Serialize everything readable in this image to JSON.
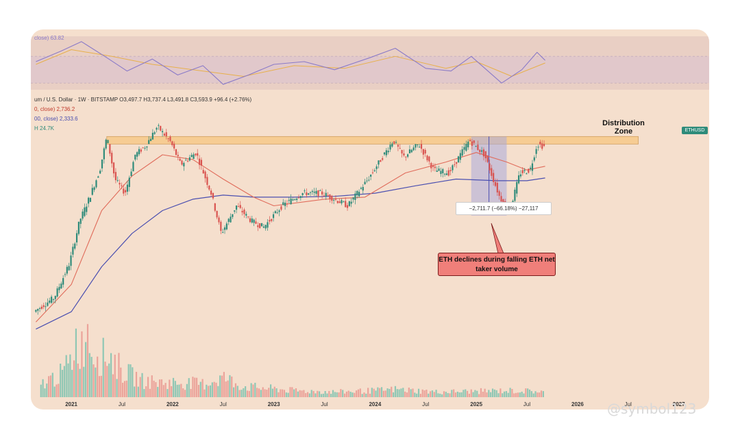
{
  "header": {
    "main": "um / U.S. Dollar · 1W · BITSTAMP  O3,497.7 H3,737.4 L3,491.8 C3,593.9 +96.4 (+2.76%)",
    "ma1": "0, close)  2,736.2",
    "ma2": "00, close)  2,333.6",
    "vol": "H  24.7K",
    "rsi": "close)  63.82"
  },
  "annotations": {
    "zone_label": "Distribution Zone",
    "price_tag": "ETHUSD",
    "measure": "−2,711.7 (−66.18%) −27,117",
    "callout": "ETH declines during falling ETH net taker volume"
  },
  "watermark": "@symbol123",
  "colors": {
    "up": "#2e8b7a",
    "down": "#d9534f",
    "ma_short": "#e06b5a",
    "ma_long": "#4a4fb0",
    "zone": "#f7c98a",
    "measure_box": "#a9a9dc",
    "rsi_line": "#8a7ac8",
    "rsi_signal": "#e8b04a",
    "callout": "#f07f7a"
  },
  "chart_data": {
    "type": "line",
    "x_tick_labels": [
      "2021",
      "Jul",
      "2022",
      "Jul",
      "2023",
      "Jul",
      "2024",
      "Jul",
      "2025",
      "Jul",
      "2026",
      "Jul",
      "2027"
    ],
    "price_points": [
      {
        "x": 2020.65,
        "y": 380
      },
      {
        "x": 2020.85,
        "y": 460
      },
      {
        "x": 2021.0,
        "y": 730
      },
      {
        "x": 2021.1,
        "y": 1300
      },
      {
        "x": 2021.2,
        "y": 1800
      },
      {
        "x": 2021.3,
        "y": 2600
      },
      {
        "x": 2021.37,
        "y": 4100
      },
      {
        "x": 2021.45,
        "y": 2300
      },
      {
        "x": 2021.55,
        "y": 1900
      },
      {
        "x": 2021.65,
        "y": 3200
      },
      {
        "x": 2021.75,
        "y": 3600
      },
      {
        "x": 2021.87,
        "y": 4700
      },
      {
        "x": 2022.0,
        "y": 3800
      },
      {
        "x": 2022.1,
        "y": 2800
      },
      {
        "x": 2022.25,
        "y": 3300
      },
      {
        "x": 2022.4,
        "y": 1900
      },
      {
        "x": 2022.5,
        "y": 1100
      },
      {
        "x": 2022.65,
        "y": 1600
      },
      {
        "x": 2022.8,
        "y": 1300
      },
      {
        "x": 2022.92,
        "y": 1200
      },
      {
        "x": 2023.1,
        "y": 1600
      },
      {
        "x": 2023.3,
        "y": 1900
      },
      {
        "x": 2023.5,
        "y": 1900
      },
      {
        "x": 2023.75,
        "y": 1600
      },
      {
        "x": 2023.95,
        "y": 2300
      },
      {
        "x": 2024.2,
        "y": 3900
      },
      {
        "x": 2024.3,
        "y": 3100
      },
      {
        "x": 2024.45,
        "y": 3700
      },
      {
        "x": 2024.6,
        "y": 2600
      },
      {
        "x": 2024.75,
        "y": 2500
      },
      {
        "x": 2024.95,
        "y": 3900
      },
      {
        "x": 2025.1,
        "y": 3200
      },
      {
        "x": 2025.25,
        "y": 1800
      },
      {
        "x": 2025.35,
        "y": 1500
      },
      {
        "x": 2025.45,
        "y": 2500
      },
      {
        "x": 2025.55,
        "y": 2600
      },
      {
        "x": 2025.62,
        "y": 3700
      },
      {
        "x": 2025.68,
        "y": 3594
      }
    ],
    "ma_short": [
      {
        "x": 2020.65,
        "y": 330
      },
      {
        "x": 2021.0,
        "y": 550
      },
      {
        "x": 2021.3,
        "y": 1500
      },
      {
        "x": 2021.6,
        "y": 2400
      },
      {
        "x": 2021.9,
        "y": 3200
      },
      {
        "x": 2022.2,
        "y": 3000
      },
      {
        "x": 2022.5,
        "y": 2300
      },
      {
        "x": 2022.8,
        "y": 1800
      },
      {
        "x": 2023.0,
        "y": 1600
      },
      {
        "x": 2023.5,
        "y": 1750
      },
      {
        "x": 2023.9,
        "y": 1800
      },
      {
        "x": 2024.3,
        "y": 2500
      },
      {
        "x": 2024.7,
        "y": 2900
      },
      {
        "x": 2025.0,
        "y": 3300
      },
      {
        "x": 2025.3,
        "y": 2900
      },
      {
        "x": 2025.5,
        "y": 2600
      },
      {
        "x": 2025.68,
        "y": 2736
      }
    ],
    "ma_long": [
      {
        "x": 2020.65,
        "y": 300
      },
      {
        "x": 2021.0,
        "y": 380
      },
      {
        "x": 2021.3,
        "y": 700
      },
      {
        "x": 2021.6,
        "y": 1100
      },
      {
        "x": 2021.9,
        "y": 1500
      },
      {
        "x": 2022.2,
        "y": 1750
      },
      {
        "x": 2022.5,
        "y": 1850
      },
      {
        "x": 2022.8,
        "y": 1800
      },
      {
        "x": 2023.2,
        "y": 1800
      },
      {
        "x": 2023.6,
        "y": 1820
      },
      {
        "x": 2024.0,
        "y": 1900
      },
      {
        "x": 2024.4,
        "y": 2100
      },
      {
        "x": 2024.8,
        "y": 2300
      },
      {
        "x": 2025.2,
        "y": 2250
      },
      {
        "x": 2025.5,
        "y": 2250
      },
      {
        "x": 2025.68,
        "y": 2334
      }
    ],
    "distribution_zone": {
      "y_low": 3700,
      "y_high": 4100
    },
    "measure_decline": {
      "x_start": 2024.95,
      "x_end": 2025.3,
      "y_top": 4100,
      "y_bottom": 1400,
      "change": -2711.7,
      "pct": -66.18
    },
    "rsi_points": [
      {
        "x": 2020.65,
        "y": 62
      },
      {
        "x": 2020.9,
        "y": 78
      },
      {
        "x": 2021.1,
        "y": 92
      },
      {
        "x": 2021.35,
        "y": 68
      },
      {
        "x": 2021.55,
        "y": 48
      },
      {
        "x": 2021.8,
        "y": 66
      },
      {
        "x": 2022.05,
        "y": 42
      },
      {
        "x": 2022.3,
        "y": 56
      },
      {
        "x": 2022.5,
        "y": 28
      },
      {
        "x": 2022.75,
        "y": 42
      },
      {
        "x": 2023.0,
        "y": 58
      },
      {
        "x": 2023.3,
        "y": 62
      },
      {
        "x": 2023.6,
        "y": 50
      },
      {
        "x": 2023.95,
        "y": 68
      },
      {
        "x": 2024.2,
        "y": 82
      },
      {
        "x": 2024.5,
        "y": 52
      },
      {
        "x": 2024.75,
        "y": 48
      },
      {
        "x": 2024.95,
        "y": 70
      },
      {
        "x": 2025.25,
        "y": 30
      },
      {
        "x": 2025.45,
        "y": 50
      },
      {
        "x": 2025.6,
        "y": 76
      },
      {
        "x": 2025.68,
        "y": 64
      }
    ],
    "rsi_signal": [
      {
        "x": 2020.65,
        "y": 58
      },
      {
        "x": 2021.0,
        "y": 80
      },
      {
        "x": 2021.4,
        "y": 70
      },
      {
        "x": 2021.8,
        "y": 58
      },
      {
        "x": 2022.3,
        "y": 48
      },
      {
        "x": 2022.7,
        "y": 40
      },
      {
        "x": 2023.2,
        "y": 56
      },
      {
        "x": 2023.7,
        "y": 52
      },
      {
        "x": 2024.2,
        "y": 70
      },
      {
        "x": 2024.7,
        "y": 52
      },
      {
        "x": 2025.0,
        "y": 62
      },
      {
        "x": 2025.35,
        "y": 40
      },
      {
        "x": 2025.68,
        "y": 60
      }
    ],
    "volume_points": [
      {
        "x": 2020.7,
        "y": 20
      },
      {
        "x": 2020.9,
        "y": 35
      },
      {
        "x": 2021.0,
        "y": 55
      },
      {
        "x": 2021.05,
        "y": 90
      },
      {
        "x": 2021.1,
        "y": 70
      },
      {
        "x": 2021.15,
        "y": 110
      },
      {
        "x": 2021.2,
        "y": 75
      },
      {
        "x": 2021.3,
        "y": 60
      },
      {
        "x": 2021.37,
        "y": 65
      },
      {
        "x": 2021.5,
        "y": 40
      },
      {
        "x": 2021.7,
        "y": 25
      },
      {
        "x": 2021.9,
        "y": 22
      },
      {
        "x": 2022.1,
        "y": 22
      },
      {
        "x": 2022.3,
        "y": 20
      },
      {
        "x": 2022.5,
        "y": 30
      },
      {
        "x": 2022.7,
        "y": 16
      },
      {
        "x": 2022.9,
        "y": 14
      },
      {
        "x": 2023.2,
        "y": 10
      },
      {
        "x": 2023.6,
        "y": 8
      },
      {
        "x": 2024.0,
        "y": 10
      },
      {
        "x": 2024.2,
        "y": 12
      },
      {
        "x": 2024.6,
        "y": 8
      },
      {
        "x": 2025.0,
        "y": 9
      },
      {
        "x": 2025.3,
        "y": 10
      },
      {
        "x": 2025.6,
        "y": 9
      },
      {
        "x": 2025.68,
        "y": 8
      }
    ]
  }
}
